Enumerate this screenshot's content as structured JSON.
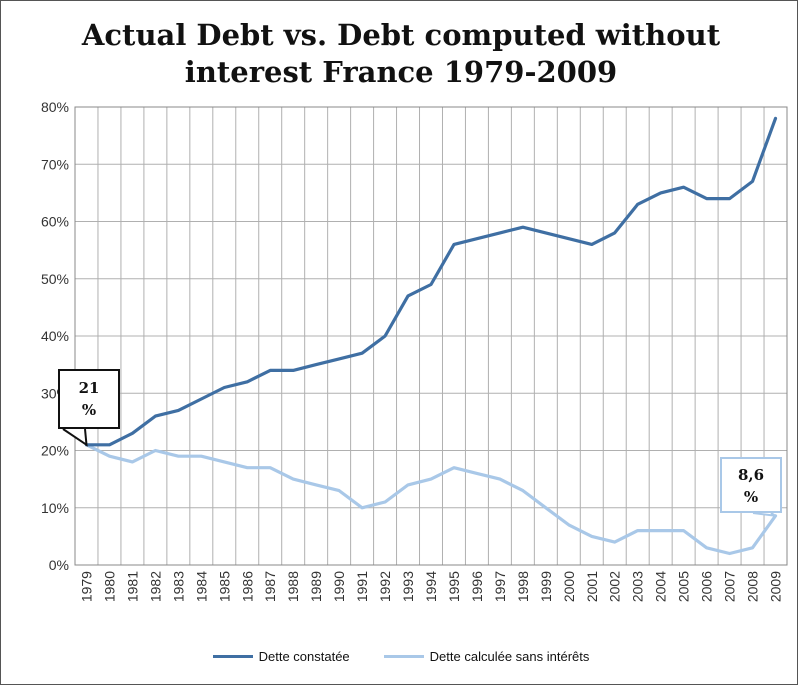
{
  "chart_data": {
    "type": "line",
    "title": "Actual Debt vs. Debt computed without interest  France 1979-2009",
    "title_lines": [
      "Actual Debt vs. Debt computed without",
      "interest  France 1979-2009"
    ],
    "categories": [
      "1979",
      "1980",
      "1981",
      "1982",
      "1983",
      "1984",
      "1985",
      "1986",
      "1987",
      "1988",
      "1989",
      "1990",
      "1991",
      "1992",
      "1993",
      "1994",
      "1995",
      "1996",
      "1997",
      "1998",
      "1999",
      "2000",
      "2001",
      "2002",
      "2003",
      "2004",
      "2005",
      "2006",
      "2007",
      "2008",
      "2009"
    ],
    "y_ticks": [
      "0%",
      "10%",
      "20%",
      "30%",
      "40%",
      "50%",
      "60%",
      "70%",
      "80%"
    ],
    "ylim": [
      0,
      80
    ],
    "grid": true,
    "legend_position": "bottom",
    "series": [
      {
        "name": "Dette constatée",
        "color": "#3f6fa3",
        "values": [
          21,
          21,
          23,
          26,
          27,
          29,
          31,
          32,
          34,
          34,
          35,
          36,
          37,
          40,
          47,
          49,
          56,
          57,
          58,
          59,
          58,
          57,
          56,
          58,
          63,
          65,
          66,
          64,
          64,
          67,
          78
        ]
      },
      {
        "name": "Dette calculée sans intérêts",
        "color": "#a9c8e8",
        "values": [
          21,
          19,
          18,
          20,
          19,
          19,
          18,
          17,
          17,
          15,
          14,
          13,
          10,
          11,
          14,
          15,
          17,
          16,
          15,
          13,
          10,
          7,
          5,
          4,
          6,
          6,
          6,
          3,
          2,
          3,
          8.6
        ]
      }
    ],
    "annotations": [
      {
        "line1": "21",
        "line2": "%"
      },
      {
        "line1": "8,6",
        "line2": "%"
      }
    ]
  }
}
